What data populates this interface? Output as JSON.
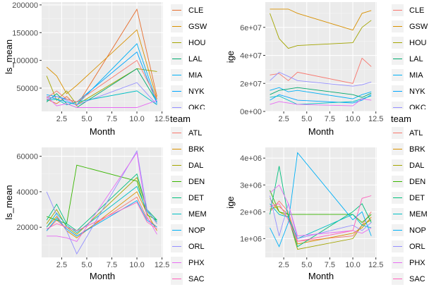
{
  "chart_data": [
    {
      "type": "line",
      "xlabel": "Month",
      "ylabel": "ls_mean",
      "x_ticks": [
        2.5,
        5.0,
        7.5,
        10.0,
        12.5
      ],
      "y_ticks": [
        50000,
        100000,
        150000,
        200000
      ],
      "xlim": [
        0.5,
        12.6
      ],
      "ylim": [
        8000,
        205000
      ],
      "legend_title": "",
      "legend": [
        "CLE",
        "GSW",
        "HOU",
        "LAL",
        "MIA",
        "NYK",
        "OKC"
      ],
      "series": [
        {
          "name": "CLE",
          "color": "#e76f2f",
          "x": [
            1,
            2,
            3,
            4,
            10,
            12
          ],
          "y": [
            30000,
            22000,
            35000,
            18000,
            192000,
            35000
          ]
        },
        {
          "name": "GSW",
          "color": "#d89000",
          "x": [
            1,
            2,
            3,
            4,
            10,
            12
          ],
          "y": [
            88000,
            72000,
            40000,
            55000,
            155000,
            30000
          ]
        },
        {
          "name": "HOU",
          "color": "#a3a500",
          "x": [
            1,
            2,
            3,
            4,
            10,
            12
          ],
          "y": [
            72000,
            28000,
            45000,
            20000,
            85000,
            80000
          ]
        },
        {
          "name": "LAL",
          "color": "#00a96f",
          "x": [
            1,
            2,
            3,
            4,
            10,
            12
          ],
          "y": [
            25000,
            40000,
            22000,
            15000,
            85000,
            25000
          ]
        },
        {
          "name": "MIA",
          "color": "#00b0f6",
          "x": [
            1,
            2,
            3,
            4,
            10,
            12
          ],
          "y": [
            35000,
            30000,
            25000,
            20000,
            130000,
            25000
          ]
        },
        {
          "name": "NYK",
          "color": "#00a5ff",
          "x": [
            1,
            2,
            3,
            4,
            10,
            12
          ],
          "y": [
            38000,
            35000,
            30000,
            25000,
            115000,
            22000
          ]
        },
        {
          "name": "OKC",
          "color": "#9590ff",
          "x": [
            1,
            2,
            3,
            4,
            10,
            12
          ],
          "y": [
            30000,
            35000,
            28000,
            20000,
            60000,
            20000
          ]
        },
        {
          "name": "",
          "color": "#00bfc4",
          "x": [
            1,
            2,
            3,
            4,
            10,
            12
          ],
          "y": [
            28000,
            30000,
            20000,
            25000,
            45000,
            20000
          ]
        },
        {
          "name": "",
          "color": "#f8766d",
          "x": [
            1,
            2,
            3,
            4,
            10,
            12
          ],
          "y": [
            32000,
            45000,
            30000,
            25000,
            100000,
            30000
          ]
        },
        {
          "name": "",
          "color": "#e76bf3",
          "x": [
            1,
            2,
            3,
            4,
            10,
            12
          ],
          "y": [
            35000,
            18000,
            22000,
            15000,
            15000,
            28000
          ]
        }
      ]
    },
    {
      "type": "line",
      "xlabel": "Month",
      "ylabel": "ige",
      "x_ticks": [
        2.5,
        5.0,
        7.5,
        10.0,
        12.5
      ],
      "y_ticks": [
        0,
        20000000,
        40000000,
        60000000
      ],
      "y_tick_labels": [
        "0e+00",
        "2e+07",
        "4e+07",
        "6e+07"
      ],
      "xlim": [
        0.5,
        12.6
      ],
      "ylim": [
        0,
        78000000
      ],
      "legend_title": "",
      "legend": [
        "CLE",
        "GSW",
        "HOU",
        "LAL",
        "MIA",
        "NYK",
        "OKC"
      ],
      "series": [
        {
          "name": "GSW",
          "color": "#d89000",
          "x": [
            1,
            2,
            3,
            4,
            10,
            11,
            12
          ],
          "y": [
            73000000,
            73000000,
            73000000,
            70000000,
            58000000,
            70000000,
            72000000
          ]
        },
        {
          "name": "HOU",
          "color": "#a3a500",
          "x": [
            1,
            2,
            3,
            4,
            10,
            11,
            12
          ],
          "y": [
            70000000,
            52000000,
            45000000,
            47000000,
            49000000,
            60000000,
            65000000
          ]
        },
        {
          "name": "CLE",
          "color": "#f8766d",
          "x": [
            1,
            2,
            3,
            4,
            10,
            11,
            12
          ],
          "y": [
            26000000,
            27000000,
            22000000,
            28000000,
            20000000,
            38000000,
            32000000
          ]
        },
        {
          "name": "OKC",
          "color": "#9590ff",
          "x": [
            1,
            2,
            3,
            4,
            10,
            11,
            12
          ],
          "y": [
            22000000,
            28000000,
            25000000,
            22000000,
            18000000,
            19000000,
            21000000
          ]
        },
        {
          "name": "MIA",
          "color": "#00b0f6",
          "x": [
            1,
            2,
            3,
            4,
            10,
            11,
            12
          ],
          "y": [
            15000000,
            17000000,
            14000000,
            15000000,
            9000000,
            12000000,
            14000000
          ]
        },
        {
          "name": "LAL",
          "color": "#00a96f",
          "x": [
            1,
            2,
            3,
            4,
            10,
            11,
            12
          ],
          "y": [
            12000000,
            15000000,
            16000000,
            17000000,
            12000000,
            10000000,
            13000000
          ]
        },
        {
          "name": "NYK",
          "color": "#00a5ff",
          "x": [
            1,
            2,
            3,
            4,
            10,
            11,
            12
          ],
          "y": [
            8000000,
            12000000,
            10000000,
            8000000,
            6000000,
            8000000,
            12000000
          ]
        },
        {
          "name": "",
          "color": "#00bfc4",
          "x": [
            1,
            2,
            3,
            4,
            10,
            11,
            12
          ],
          "y": [
            10000000,
            11000000,
            8000000,
            5000000,
            7000000,
            9000000,
            11000000
          ]
        },
        {
          "name": "",
          "color": "#e76bf3",
          "x": [
            1,
            2,
            3,
            4,
            10,
            11,
            12
          ],
          "y": [
            5000000,
            7000000,
            6000000,
            5000000,
            4000000,
            9000000,
            8000000
          ]
        }
      ]
    },
    {
      "type": "line",
      "xlabel": "Month",
      "ylabel": "ls_mean",
      "x_ticks": [
        2.5,
        5.0,
        7.5,
        10.0,
        12.5
      ],
      "y_ticks": [
        20000,
        40000,
        60000
      ],
      "xlim": [
        0.5,
        12.6
      ],
      "ylim": [
        3000,
        65000
      ],
      "legend_title": "team",
      "legend": [
        "ATL",
        "BRK",
        "DAL",
        "DEN",
        "DET",
        "MEM",
        "NOP",
        "ORL",
        "PHX",
        "SAC"
      ],
      "series": [
        {
          "name": "ATL",
          "color": "#f8766d",
          "x": [
            1,
            2,
            3,
            4,
            10,
            11,
            12
          ],
          "y": [
            18000,
            24000,
            19000,
            15000,
            37000,
            25000,
            20000
          ]
        },
        {
          "name": "BRK",
          "color": "#d89000",
          "x": [
            1,
            2,
            3,
            4,
            10,
            11,
            12
          ],
          "y": [
            20000,
            26000,
            18000,
            14000,
            40000,
            28000,
            18000
          ]
        },
        {
          "name": "DAL",
          "color": "#a3a500",
          "x": [
            1,
            2,
            3,
            4,
            10,
            11,
            12
          ],
          "y": [
            22000,
            30000,
            20000,
            16000,
            48000,
            30000,
            22000
          ]
        },
        {
          "name": "DEN",
          "color": "#39b600",
          "x": [
            1,
            2,
            3,
            4,
            10,
            11,
            12
          ],
          "y": [
            26000,
            24000,
            22000,
            55000,
            46000,
            27000,
            24000
          ]
        },
        {
          "name": "DET",
          "color": "#00bf7d",
          "x": [
            1,
            2,
            3,
            4,
            10,
            11,
            12
          ],
          "y": [
            24000,
            33000,
            22000,
            18000,
            50000,
            30000,
            24000
          ]
        },
        {
          "name": "MEM",
          "color": "#00bfc4",
          "x": [
            1,
            2,
            3,
            4,
            10,
            11,
            12
          ],
          "y": [
            20000,
            28000,
            21000,
            17000,
            43000,
            29000,
            23000
          ]
        },
        {
          "name": "NOP",
          "color": "#00b0f6",
          "x": [
            1,
            2,
            3,
            4,
            10,
            11,
            12
          ],
          "y": [
            18000,
            25000,
            19000,
            15000,
            35000,
            24000,
            20000
          ]
        },
        {
          "name": "ORL",
          "color": "#9590ff",
          "x": [
            1,
            2,
            3,
            4,
            10,
            11,
            12
          ],
          "y": [
            40000,
            27000,
            18000,
            5000,
            63000,
            30000,
            22000
          ]
        },
        {
          "name": "PHX",
          "color": "#e76bf3",
          "x": [
            1,
            2,
            3,
            4,
            10,
            11,
            12
          ],
          "y": [
            15000,
            15000,
            14000,
            12000,
            62000,
            26000,
            16000
          ]
        },
        {
          "name": "SAC",
          "color": "#ff62bc",
          "x": [
            1,
            2,
            3,
            4,
            10,
            11,
            12
          ],
          "y": [
            19000,
            22000,
            20000,
            18000,
            34000,
            23000,
            19000
          ]
        }
      ]
    },
    {
      "type": "line",
      "xlabel": "Month",
      "ylabel": "ige",
      "x_ticks": [
        2.5,
        5.0,
        7.5,
        10.0,
        12.5
      ],
      "y_ticks": [
        1000000,
        2000000,
        3000000,
        4000000
      ],
      "y_tick_labels": [
        "1e+06",
        "2e+06",
        "3e+06",
        "4e+06"
      ],
      "xlim": [
        0.5,
        12.6
      ],
      "ylim": [
        300000,
        4400000
      ],
      "legend_title": "team",
      "legend": [
        "ATL",
        "BRK",
        "DAL",
        "DEN",
        "DET",
        "MEM",
        "NOP",
        "ORL",
        "PHX",
        "SAC"
      ],
      "series": [
        {
          "name": "ATL",
          "color": "#f8766d",
          "x": [
            1,
            2,
            3,
            4,
            10,
            11,
            12
          ],
          "y": [
            2000000,
            2400000,
            2000000,
            900000,
            1100000,
            1500000,
            2000000
          ]
        },
        {
          "name": "BRK",
          "color": "#d89000",
          "x": [
            1,
            2,
            3,
            4,
            10,
            11,
            12
          ],
          "y": [
            2100000,
            2200000,
            1900000,
            800000,
            1200000,
            1400000,
            1800000
          ]
        },
        {
          "name": "DAL",
          "color": "#a3a500",
          "x": [
            1,
            2,
            3,
            4,
            10,
            11,
            12
          ],
          "y": [
            2500000,
            2000000,
            1800000,
            600000,
            1000000,
            1500000,
            1700000
          ]
        },
        {
          "name": "DEN",
          "color": "#39b600",
          "x": [
            1,
            2,
            3,
            4,
            10,
            11,
            12
          ],
          "y": [
            2800000,
            2000000,
            1900000,
            1900000,
            1900000,
            1600000,
            1900000
          ]
        },
        {
          "name": "DET",
          "color": "#00bf7d",
          "x": [
            1,
            2,
            3,
            4,
            10,
            11,
            12
          ],
          "y": [
            1900000,
            3700000,
            1800000,
            700000,
            2000000,
            2300000,
            1600000
          ]
        },
        {
          "name": "MEM",
          "color": "#00bfc4",
          "x": [
            1,
            2,
            3,
            4,
            10,
            11,
            12
          ],
          "y": [
            2300000,
            1900000,
            1800000,
            1000000,
            1900000,
            1500000,
            1400000
          ]
        },
        {
          "name": "NOP",
          "color": "#00b0f6",
          "x": [
            1,
            2,
            3,
            4,
            10,
            11,
            12
          ],
          "y": [
            1400000,
            700000,
            1600000,
            4200000,
            1700000,
            2000000,
            1100000
          ]
        },
        {
          "name": "ORL",
          "color": "#9590ff",
          "x": [
            1,
            2,
            3,
            4,
            10,
            11,
            12
          ],
          "y": [
            2600000,
            1100000,
            2300000,
            1000000,
            1500000,
            1300000,
            1600000
          ]
        },
        {
          "name": "PHX",
          "color": "#e76bf3",
          "x": [
            1,
            2,
            3,
            4,
            10,
            11,
            12
          ],
          "y": [
            2700000,
            3000000,
            2300000,
            1100000,
            1300000,
            1200000,
            1400000
          ]
        },
        {
          "name": "SAC",
          "color": "#ff62bc",
          "x": [
            1,
            2,
            3,
            4,
            10,
            11,
            12
          ],
          "y": [
            2200000,
            2300000,
            1700000,
            900000,
            1300000,
            2500000,
            2600000
          ]
        }
      ]
    }
  ]
}
